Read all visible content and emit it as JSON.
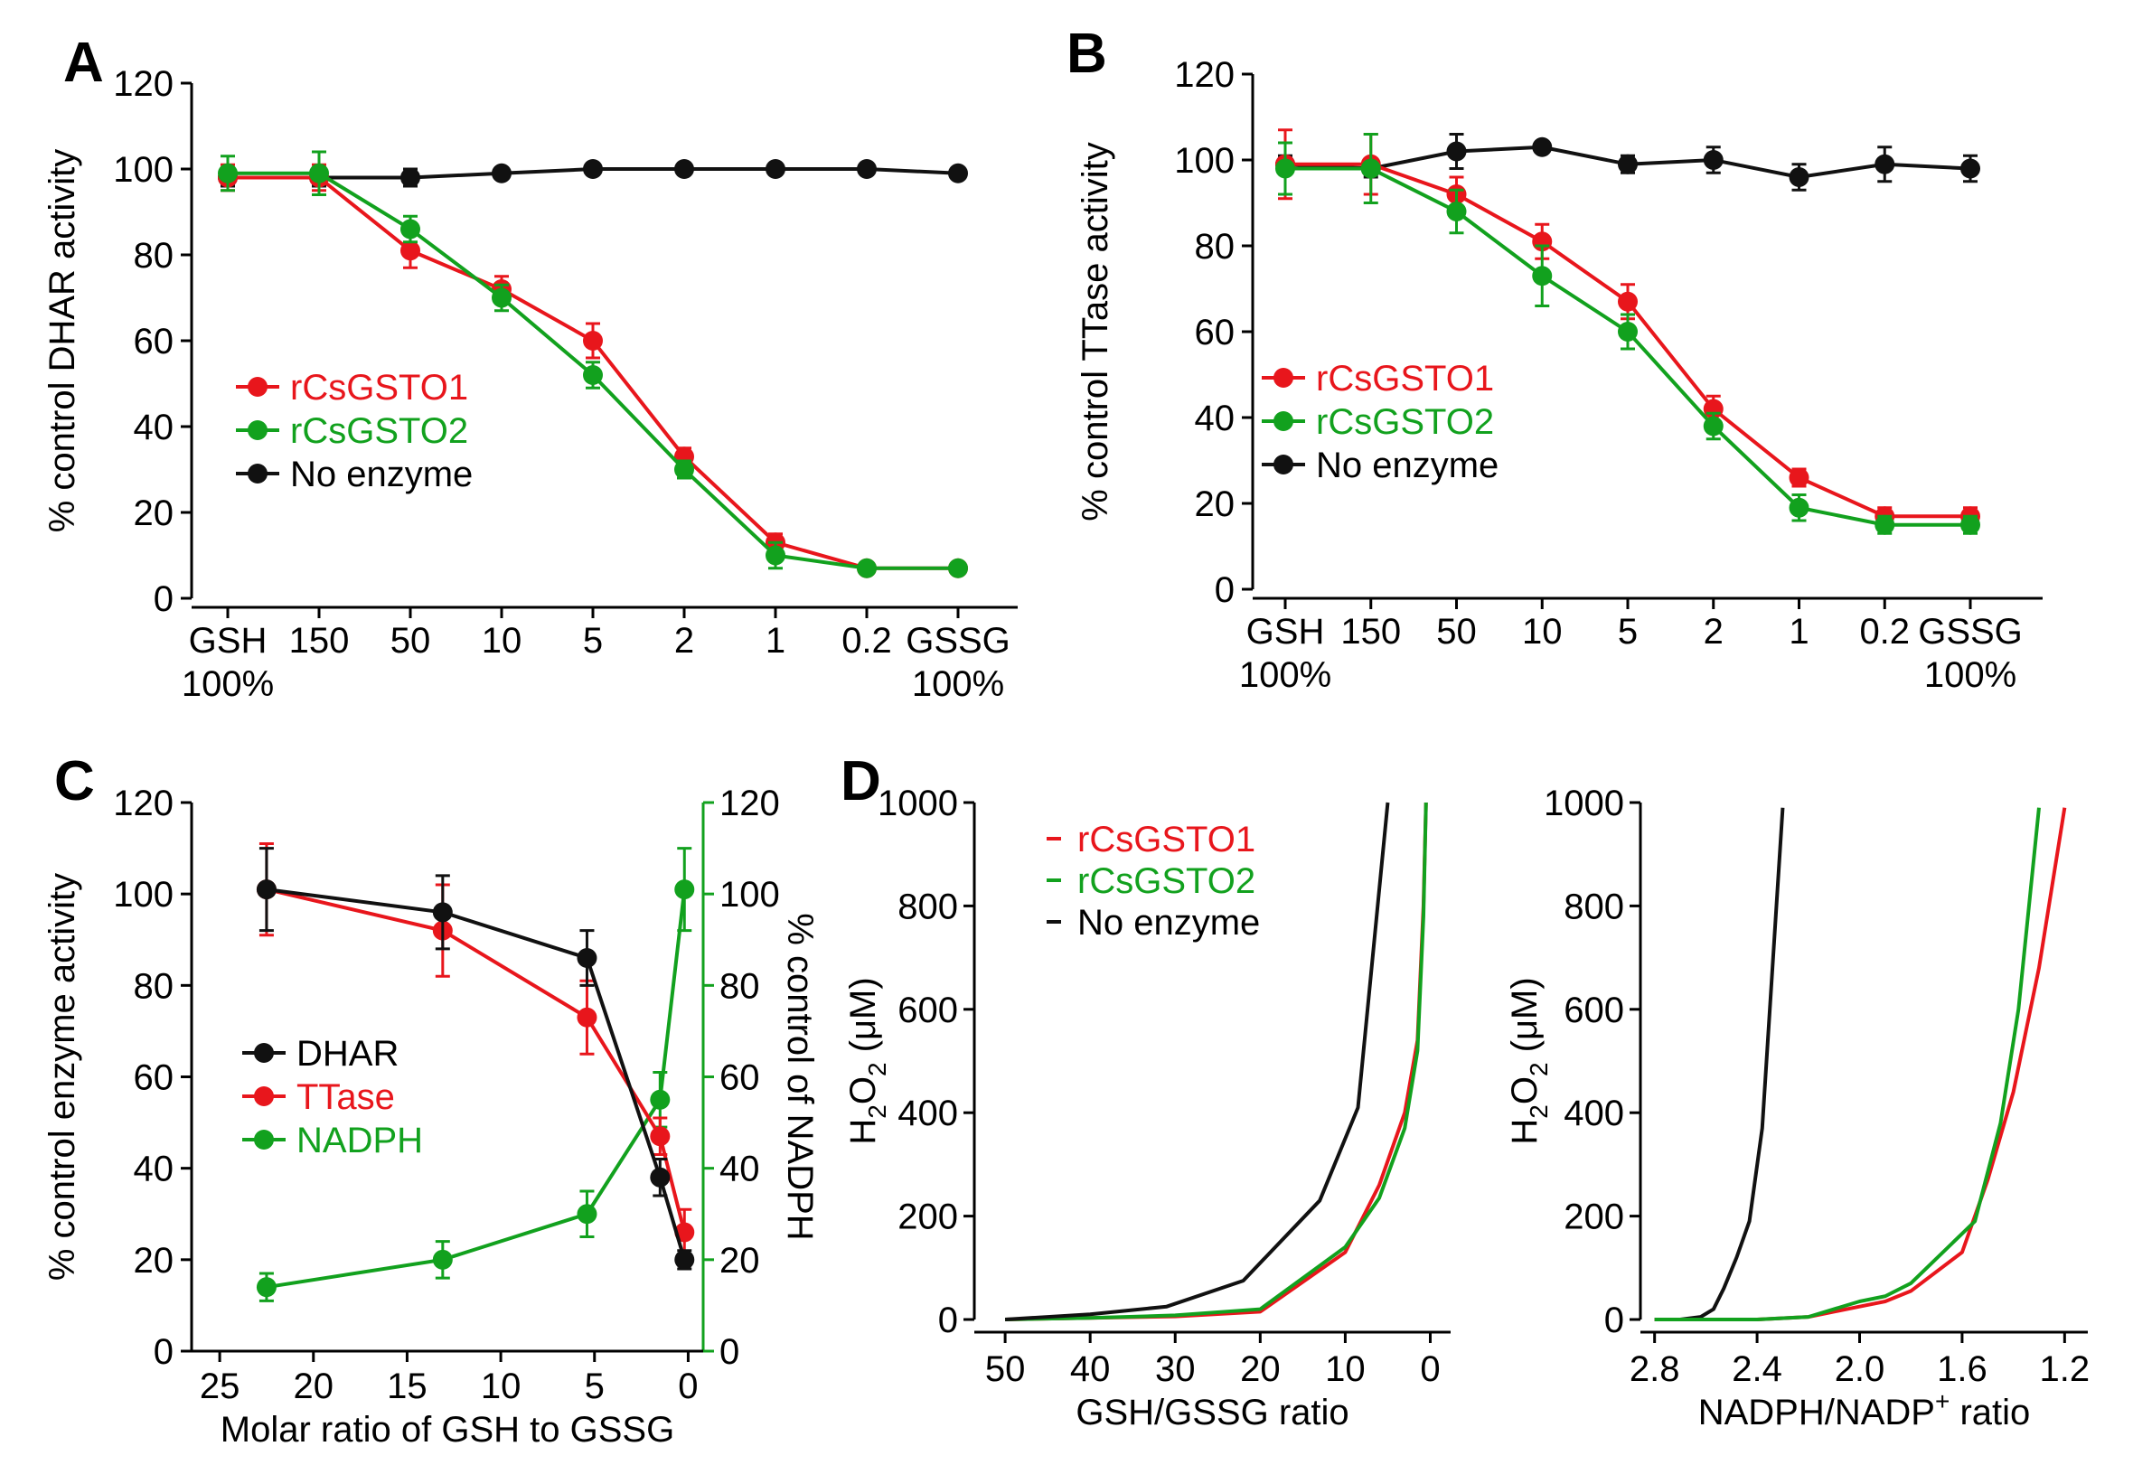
{
  "figure": {
    "description_free": true
  },
  "colors": {
    "red": "#e8161c",
    "green": "#12a11e",
    "black": "#111111"
  },
  "chart_data": [
    {
      "panel": "A",
      "type": "line",
      "ylabel": "% control DHAR activity",
      "ylim": [
        0,
        120
      ],
      "yticks": [
        "0",
        "20",
        "40",
        "60",
        "80",
        "100",
        "120"
      ],
      "categories": [
        "GSH",
        "150",
        "50",
        "10",
        "5",
        "2",
        "1",
        "0.2",
        "GSSG"
      ],
      "category_sublabels": [
        {
          "index": 0,
          "text": "100%"
        },
        {
          "index": 8,
          "text": "100%"
        }
      ],
      "series": [
        {
          "name": "rCsGSTO1",
          "color": "#e8161c",
          "values": [
            98,
            98,
            81,
            72,
            60,
            33,
            13,
            7,
            7
          ],
          "errors": [
            3,
            3,
            4,
            3,
            4,
            2,
            2,
            1,
            1
          ]
        },
        {
          "name": "rCsGSTO2",
          "color": "#12a11e",
          "values": [
            99,
            99,
            86,
            70,
            52,
            30,
            10,
            7,
            7
          ],
          "errors": [
            4,
            5,
            3,
            3,
            3,
            2,
            3,
            1,
            1
          ]
        },
        {
          "name": "No enzyme",
          "color": "#111111",
          "values": [
            98,
            98,
            98,
            99,
            100,
            100,
            100,
            100,
            99
          ],
          "errors": [
            2,
            2,
            2,
            1,
            1,
            1,
            1,
            1,
            1
          ]
        }
      ],
      "legend_position": "left-middle"
    },
    {
      "panel": "B",
      "type": "line",
      "ylabel": "% control TTase activity",
      "ylim": [
        0,
        120
      ],
      "yticks": [
        "0",
        "20",
        "40",
        "60",
        "80",
        "100",
        "120"
      ],
      "categories": [
        "GSH",
        "150",
        "50",
        "10",
        "5",
        "2",
        "1",
        "0.2",
        "GSSG"
      ],
      "category_sublabels": [
        {
          "index": 0,
          "text": "100%"
        },
        {
          "index": 8,
          "text": "100%"
        }
      ],
      "series": [
        {
          "name": "rCsGSTO1",
          "color": "#e8161c",
          "values": [
            99,
            99,
            92,
            81,
            67,
            42,
            26,
            17,
            17
          ],
          "errors": [
            8,
            7,
            4,
            4,
            4,
            3,
            2,
            2,
            2
          ]
        },
        {
          "name": "rCsGSTO2",
          "color": "#12a11e",
          "values": [
            98,
            98,
            88,
            73,
            60,
            38,
            19,
            15,
            15
          ],
          "errors": [
            6,
            8,
            5,
            7,
            4,
            3,
            3,
            2,
            2
          ]
        },
        {
          "name": "No enzyme",
          "color": "#111111",
          "values": [
            99,
            98,
            102,
            103,
            99,
            100,
            96,
            99,
            98
          ],
          "errors": [
            2,
            2,
            4,
            1,
            2,
            3,
            3,
            4,
            3
          ]
        }
      ],
      "legend_position": "left-middle"
    },
    {
      "panel": "C",
      "type": "line",
      "xlabel": "Molar ratio of GSH to GSSG",
      "ylabel": "% control enzyme activity",
      "y2label": "% control of NADPH",
      "xlim": [
        26.5,
        -0.8
      ],
      "xticks": [
        25,
        20,
        15,
        10,
        5,
        0
      ],
      "ylim": [
        0,
        120
      ],
      "yticks": [
        "0",
        "20",
        "40",
        "60",
        "80",
        "100",
        "120"
      ],
      "y2ticks": [
        "0",
        "20",
        "40",
        "60",
        "80",
        "100",
        "120"
      ],
      "x": [
        22.5,
        13.1,
        5.4,
        1.5,
        0.2
      ],
      "series": [
        {
          "name": "DHAR",
          "color": "#111111",
          "axis": "left",
          "values": [
            101,
            96,
            86,
            38,
            20
          ],
          "errors": [
            9,
            8,
            6,
            4,
            2
          ]
        },
        {
          "name": "TTase",
          "color": "#e8161c",
          "axis": "left",
          "values": [
            101,
            92,
            73,
            47,
            26
          ],
          "errors": [
            10,
            10,
            8,
            4,
            5
          ]
        },
        {
          "name": "NADPH",
          "color": "#12a11e",
          "axis": "right",
          "values": [
            14,
            20,
            30,
            55,
            101
          ],
          "errors": [
            3,
            4,
            5,
            6,
            9
          ]
        }
      ],
      "legend_position": "left-middle"
    },
    {
      "panel": "D-left",
      "type": "line",
      "xlabel": "GSH/GSSG ratio",
      "ylabel_main": "H",
      "ylabel_sub": "2",
      "ylabel_mid": "O",
      "ylabel_sub2": "2",
      "ylabel_tail": " (μM)",
      "xlim": [
        51.5,
        -0.8
      ],
      "xticks": [
        50,
        40,
        30,
        20,
        10,
        0
      ],
      "ylim": [
        0,
        1000
      ],
      "yticks": [
        "0",
        "200",
        "400",
        "600",
        "800",
        "1000"
      ],
      "series": [
        {
          "name": "rCsGSTO1",
          "color": "#e8161c",
          "x": [
            50,
            40,
            30,
            20,
            10,
            6,
            3,
            1.5,
            0.8,
            0.5
          ],
          "values": [
            0,
            3,
            6,
            15,
            130,
            260,
            400,
            540,
            800,
            1000
          ]
        },
        {
          "name": "rCsGSTO2",
          "color": "#12a11e",
          "x": [
            50,
            40,
            30,
            20,
            10,
            6,
            3,
            1.5,
            0.8,
            0.5
          ],
          "values": [
            0,
            3,
            8,
            20,
            140,
            235,
            370,
            520,
            780,
            1000
          ]
        },
        {
          "name": "No enzyme",
          "color": "#111111",
          "x": [
            50,
            40,
            31,
            22,
            13,
            8.5,
            5
          ],
          "values": [
            0,
            10,
            25,
            75,
            230,
            410,
            1000
          ]
        }
      ],
      "legend_position": "top-left",
      "legend_items": [
        "rCsGSTO1",
        "rCsGSTO2",
        "No enzyme"
      ]
    },
    {
      "panel": "D-right",
      "type": "line",
      "xlabel_main": "NADPH/NADP",
      "xlabel_sup": "+",
      "xlabel_tail": " ratio",
      "ylabel_main": "H",
      "ylabel_sub": "2",
      "ylabel_mid": "O",
      "ylabel_sub2": "2",
      "ylabel_tail": " (μM)",
      "xlim": [
        2.82,
        1.18
      ],
      "xticks": [
        "2.8",
        "2.4",
        "2.0",
        "1.6",
        "1.2"
      ],
      "ylim": [
        0,
        1000
      ],
      "yticks": [
        "0",
        "200",
        "400",
        "600",
        "800",
        "1000"
      ],
      "series": [
        {
          "name": "No enzyme",
          "color": "#111111",
          "x": [
            2.8,
            2.7,
            2.62,
            2.57,
            2.53,
            2.48,
            2.43,
            2.38,
            2.3
          ],
          "values": [
            0,
            0,
            5,
            20,
            60,
            120,
            190,
            370,
            990
          ]
        },
        {
          "name": "rCsGSTO1",
          "color": "#e8161c",
          "x": [
            2.8,
            2.6,
            2.4,
            2.2,
            2.0,
            1.9,
            1.8,
            1.6,
            1.5,
            1.4,
            1.3,
            1.2
          ],
          "values": [
            0,
            0,
            0,
            5,
            25,
            35,
            55,
            130,
            270,
            440,
            680,
            990
          ]
        },
        {
          "name": "rCsGSTO2",
          "color": "#12a11e",
          "x": [
            2.8,
            2.6,
            2.4,
            2.2,
            2.0,
            1.9,
            1.8,
            1.55,
            1.45,
            1.38,
            1.3
          ],
          "values": [
            0,
            0,
            0,
            5,
            35,
            45,
            70,
            190,
            380,
            600,
            990
          ]
        }
      ]
    }
  ],
  "panel_letters": {
    "a": "A",
    "b": "B",
    "c": "C",
    "d": "D"
  }
}
